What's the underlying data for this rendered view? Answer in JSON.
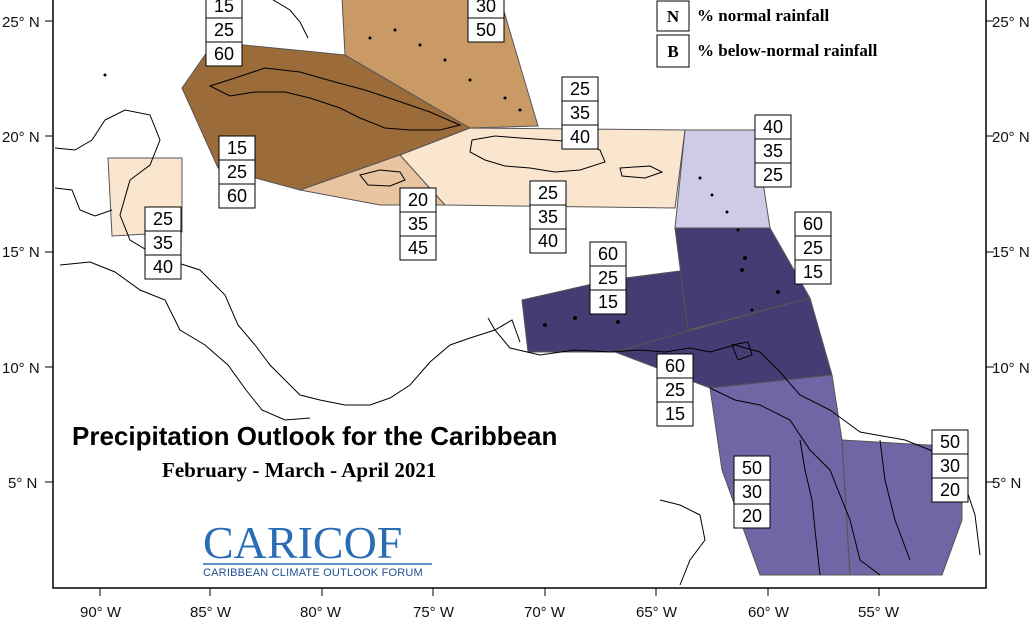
{
  "title": "Precipitation Outlook for the Caribbean",
  "subtitle": "February - March - April 2021",
  "legend": [
    {
      "key": "N",
      "text": "% normal rainfall"
    },
    {
      "key": "B",
      "text": "% below-normal rainfall"
    }
  ],
  "lat_ticks": [
    "25° N",
    "20° N",
    "15° N",
    "10° N",
    "5° N"
  ],
  "lon_ticks": [
    "90° W",
    "85° W",
    "80° W",
    "75° W",
    "70° W",
    "65° W",
    "60° W",
    "55° W"
  ],
  "logo": {
    "name": "CARICOF",
    "subtitle": "CARIBBEAN CLIMATE OUTLOOK FORUM"
  },
  "colors": {
    "strong_below": "#9b6b3a",
    "moderate_below": "#c99a66",
    "light_below": "#e8c5a0",
    "slight_below": "#fae5cf",
    "slight_above": "#cfcbe6",
    "strong_above": "#463c74",
    "moderate_above": "#6f66a6"
  },
  "probability_boxes": [
    {
      "values": [
        "15",
        "25",
        "60"
      ]
    },
    {
      "values": [
        "30",
        "50"
      ]
    },
    {
      "values": [
        "15",
        "25",
        "60"
      ]
    },
    {
      "values": [
        "25",
        "35",
        "40"
      ]
    },
    {
      "values": [
        "40",
        "35",
        "25"
      ]
    },
    {
      "values": [
        "20",
        "35",
        "45"
      ]
    },
    {
      "values": [
        "25",
        "35",
        "40"
      ]
    },
    {
      "values": [
        "25",
        "35",
        "40"
      ]
    },
    {
      "values": [
        "60",
        "25",
        "15"
      ]
    },
    {
      "values": [
        "60",
        "25",
        "15"
      ]
    },
    {
      "values": [
        "60",
        "25",
        "15"
      ]
    },
    {
      "values": [
        "50",
        "30",
        "20"
      ]
    },
    {
      "values": [
        "50",
        "30",
        "20"
      ]
    }
  ]
}
